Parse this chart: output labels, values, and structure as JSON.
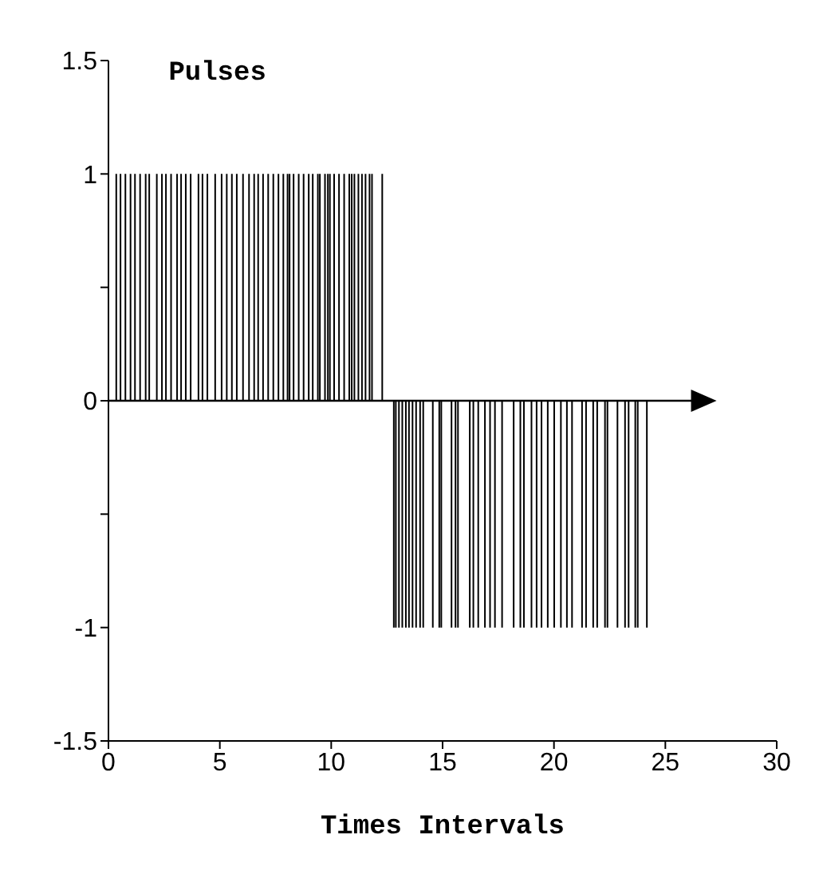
{
  "chart_data": {
    "type": "bar",
    "title": "Pulses",
    "xlabel": "Times Intervals",
    "x": [
      0.36,
      0.55,
      0.77,
      1.0,
      1.2,
      1.43,
      1.68,
      1.84,
      2.18,
      2.41,
      2.59,
      2.82,
      3.09,
      3.27,
      3.48,
      3.7,
      4.05,
      4.23,
      4.45,
      4.8,
      5.09,
      5.32,
      5.55,
      5.77,
      6.05,
      6.32,
      6.55,
      6.73,
      6.95,
      7.18,
      7.41,
      7.64,
      7.86,
      8.05,
      8.14,
      8.32,
      8.55,
      8.77,
      9.0,
      9.18,
      9.41,
      9.5,
      9.73,
      9.86,
      9.95,
      10.14,
      10.36,
      10.59,
      10.82,
      10.93,
      11.05,
      11.23,
      11.39,
      11.55,
      11.73,
      11.84,
      12.3,
      12.82,
      12.91,
      13.05,
      13.2,
      13.36,
      13.5,
      13.66,
      13.82,
      14.0,
      14.14,
      14.57,
      14.86,
      14.95,
      15.41,
      15.59,
      15.7,
      16.23,
      16.39,
      16.61,
      16.91,
      17.14,
      17.36,
      17.68,
      18.2,
      18.5,
      18.66,
      19.0,
      19.23,
      19.45,
      19.73,
      20.02,
      20.32,
      20.59,
      20.82,
      21.27,
      21.45,
      21.77,
      21.95,
      22.3,
      22.41,
      22.86,
      23.2,
      23.36,
      23.66,
      23.77,
      24.18
    ],
    "series": [
      {
        "color": "#000000",
        "values": [
          1,
          1,
          1,
          1,
          1,
          1,
          1,
          1,
          1,
          1,
          1,
          1,
          1,
          1,
          1,
          1,
          1,
          1,
          1,
          1,
          1,
          1,
          1,
          1,
          1,
          1,
          1,
          1,
          1,
          1,
          1,
          1,
          1,
          1,
          1,
          1,
          1,
          1,
          1,
          1,
          1,
          1,
          1,
          1,
          1,
          1,
          1,
          1,
          1,
          1,
          1,
          1,
          1,
          1,
          1,
          1,
          1,
          -1,
          -1,
          -1,
          -1,
          -1,
          -1,
          -1,
          -1,
          -1,
          -1,
          -1,
          -1,
          -1,
          -1,
          -1,
          -1,
          -1,
          -1,
          -1,
          -1,
          -1,
          -1,
          -1,
          -1,
          -1,
          -1,
          -1,
          -1,
          -1,
          -1,
          -1,
          -1,
          -1,
          -1,
          -1,
          -1,
          -1,
          -1,
          -1,
          -1,
          -1,
          -1,
          -1,
          -1,
          -1,
          -1
        ]
      }
    ],
    "xlim": [
      0,
      30
    ],
    "xticks": [
      0,
      5,
      10,
      15,
      20,
      25,
      30
    ],
    "ylim": [
      -1.5,
      1.5
    ],
    "yticks": [
      -1.5,
      -1,
      {
        "value": -0.5,
        "label": null
      },
      0,
      {
        "value": 0.5,
        "label": null
      },
      1,
      1.5
    ],
    "tick_labels": [
      "x",
      "y"
    ]
  }
}
